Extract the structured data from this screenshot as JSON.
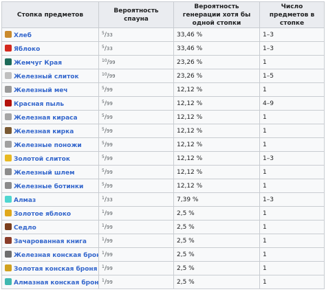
{
  "headers": [
    "Стопка предметов",
    "Вероятность спауна",
    "Вероятность генерации хотя бы одной стопки",
    "Число предметов в стопке"
  ],
  "rows": [
    {
      "name": "Хлеб",
      "icon": "bread-icon",
      "color": "#c98a2c",
      "num": "5",
      "den": "33",
      "prob": "33,46 %",
      "count": "1–3"
    },
    {
      "name": "Яблоко",
      "icon": "apple-icon",
      "color": "#d42a1f",
      "num": "5",
      "den": "33",
      "prob": "33,46 %",
      "count": "1–3"
    },
    {
      "name": "Жемчуг Края",
      "icon": "ender-pearl-icon",
      "color": "#1d6b5a",
      "num": "10",
      "den": "99",
      "prob": "23,26 %",
      "count": "1"
    },
    {
      "name": "Железный слиток",
      "icon": "iron-ingot-icon",
      "color": "#bfbfbf",
      "num": "10",
      "den": "99",
      "prob": "23,26 %",
      "count": "1–5"
    },
    {
      "name": "Железный меч",
      "icon": "iron-sword-icon",
      "color": "#9a9a9a",
      "num": "5",
      "den": "99",
      "prob": "12,12 %",
      "count": "1"
    },
    {
      "name": "Красная пыль",
      "icon": "redstone-icon",
      "color": "#b3120c",
      "num": "5",
      "den": "99",
      "prob": "12,12 %",
      "count": "4–9"
    },
    {
      "name": "Железная кираса",
      "icon": "iron-chestplate-icon",
      "color": "#a5a5a5",
      "num": "5",
      "den": "99",
      "prob": "12,12 %",
      "count": "1"
    },
    {
      "name": "Железная кирка",
      "icon": "iron-pickaxe-icon",
      "color": "#7a5a34",
      "num": "5",
      "den": "99",
      "prob": "12,12 %",
      "count": "1"
    },
    {
      "name": "Железные поножи",
      "icon": "iron-leggings-icon",
      "color": "#a0a0a0",
      "num": "5",
      "den": "99",
      "prob": "12,12 %",
      "count": "1"
    },
    {
      "name": "Золотой слиток",
      "icon": "gold-ingot-icon",
      "color": "#e8b923",
      "num": "5",
      "den": "99",
      "prob": "12,12 %",
      "count": "1–3"
    },
    {
      "name": "Железный шлем",
      "icon": "iron-helmet-icon",
      "color": "#8c8c8c",
      "num": "5",
      "den": "99",
      "prob": "12,12 %",
      "count": "1"
    },
    {
      "name": "Железные ботинки",
      "icon": "iron-boots-icon",
      "color": "#8a8a8a",
      "num": "5",
      "den": "99",
      "prob": "12,12 %",
      "count": "1"
    },
    {
      "name": "Алмаз",
      "icon": "diamond-icon",
      "color": "#4fd6d0",
      "num": "1",
      "den": "33",
      "prob": "7,39 %",
      "count": "1–3"
    },
    {
      "name": "Золотое яблоко",
      "icon": "golden-apple-icon",
      "color": "#e0a81c",
      "num": "1",
      "den": "99",
      "prob": "2,5 %",
      "count": "1"
    },
    {
      "name": "Седло",
      "icon": "saddle-icon",
      "color": "#7b3f1d",
      "num": "1",
      "den": "99",
      "prob": "2,5 %",
      "count": "1"
    },
    {
      "name": "Зачарованная книга",
      "icon": "enchanted-book-icon",
      "color": "#8a3d2a",
      "num": "1",
      "den": "99",
      "prob": "2,5 %",
      "count": "1"
    },
    {
      "name": "Железная конская броня",
      "icon": "iron-horse-armor-icon",
      "color": "#6e6e6e",
      "num": "1",
      "den": "99",
      "prob": "2,5 %",
      "count": "1"
    },
    {
      "name": "Золотая конская броня",
      "icon": "golden-horse-armor-icon",
      "color": "#d1a11e",
      "num": "1",
      "den": "99",
      "prob": "2,5 %",
      "count": "1"
    },
    {
      "name": "Алмазная конская броня",
      "icon": "diamond-horse-armor-icon",
      "color": "#3fb8b0",
      "num": "1",
      "den": "99",
      "prob": "2,5 %",
      "count": "1"
    }
  ]
}
